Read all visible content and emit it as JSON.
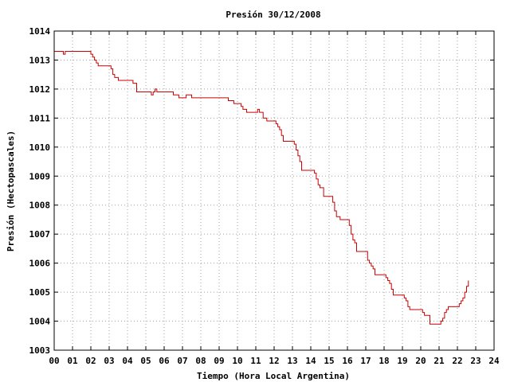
{
  "chart_data": {
    "type": "line",
    "title": "Presión 30/12/2008",
    "xlabel": "Tiempo (Hora Local Argentina)",
    "ylabel": "Presión (Hectopascales)",
    "xlim": [
      0,
      24
    ],
    "ylim": [
      1003,
      1014
    ],
    "x_ticks": [
      "00",
      "01",
      "02",
      "03",
      "04",
      "05",
      "06",
      "07",
      "08",
      "09",
      "10",
      "11",
      "12",
      "13",
      "14",
      "15",
      "16",
      "17",
      "18",
      "19",
      "20",
      "21",
      "22",
      "23",
      "24"
    ],
    "y_ticks": [
      "1003",
      "1004",
      "1005",
      "1006",
      "1007",
      "1008",
      "1009",
      "1010",
      "1011",
      "1012",
      "1013",
      "1014"
    ],
    "grid": true,
    "legend": "none",
    "line_color": "#cc0000",
    "series": [
      {
        "x": [
          0.0,
          0.4,
          0.5,
          0.6,
          1.3,
          2.0,
          2.1,
          2.2,
          2.3,
          2.4,
          2.5,
          3.0,
          3.1,
          3.2,
          3.3,
          3.5,
          4.0,
          4.3,
          4.5,
          5.0,
          5.3,
          5.4,
          5.5,
          5.6,
          6.0,
          6.5,
          6.8,
          7.0,
          7.2,
          7.4,
          7.5,
          8.0,
          8.5,
          9.0,
          9.5,
          9.8,
          10.0,
          10.2,
          10.3,
          10.5,
          10.7,
          11.0,
          11.1,
          11.2,
          11.4,
          11.6,
          11.8,
          12.0,
          12.1,
          12.2,
          12.3,
          12.4,
          12.5,
          12.6,
          12.7,
          13.0,
          13.1,
          13.2,
          13.3,
          13.4,
          13.5,
          14.0,
          14.1,
          14.2,
          14.3,
          14.4,
          14.5,
          14.7,
          15.0,
          15.1,
          15.2,
          15.3,
          15.4,
          15.6,
          16.0,
          16.1,
          16.2,
          16.3,
          16.4,
          16.5,
          16.6,
          17.0,
          17.1,
          17.2,
          17.3,
          17.4,
          17.5,
          17.6,
          18.0,
          18.1,
          18.2,
          18.3,
          18.4,
          18.5,
          18.6,
          18.7,
          19.0,
          19.1,
          19.2,
          19.3,
          19.4,
          19.5,
          19.6,
          20.0,
          20.1,
          20.2,
          20.3,
          20.4,
          20.5,
          20.6,
          21.0,
          21.1,
          21.2,
          21.3,
          21.4,
          21.5,
          22.0,
          22.1,
          22.2,
          22.3,
          22.4,
          22.5,
          22.6
        ],
        "values": [
          1013.3,
          1013.3,
          1013.2,
          1013.3,
          1013.3,
          1013.2,
          1013.1,
          1013.0,
          1012.9,
          1012.8,
          1012.8,
          1012.8,
          1012.7,
          1012.5,
          1012.4,
          1012.3,
          1012.3,
          1012.2,
          1011.9,
          1011.9,
          1011.8,
          1011.9,
          1012.0,
          1011.9,
          1011.9,
          1011.8,
          1011.7,
          1011.7,
          1011.8,
          1011.8,
          1011.7,
          1011.7,
          1011.7,
          1011.7,
          1011.6,
          1011.5,
          1011.5,
          1011.4,
          1011.3,
          1011.2,
          1011.2,
          1011.2,
          1011.3,
          1011.2,
          1011.0,
          1010.9,
          1010.9,
          1010.9,
          1010.8,
          1010.7,
          1010.6,
          1010.4,
          1010.2,
          1010.2,
          1010.2,
          1010.2,
          1010.1,
          1009.9,
          1009.7,
          1009.5,
          1009.2,
          1009.2,
          1009.2,
          1009.1,
          1008.9,
          1008.7,
          1008.6,
          1008.3,
          1008.3,
          1008.3,
          1008.1,
          1007.8,
          1007.6,
          1007.5,
          1007.5,
          1007.3,
          1007.0,
          1006.8,
          1006.7,
          1006.4,
          1006.4,
          1006.4,
          1006.1,
          1006.0,
          1005.9,
          1005.8,
          1005.6,
          1005.6,
          1005.6,
          1005.5,
          1005.4,
          1005.3,
          1005.1,
          1004.9,
          1004.9,
          1004.9,
          1004.9,
          1004.8,
          1004.7,
          1004.5,
          1004.4,
          1004.4,
          1004.4,
          1004.4,
          1004.3,
          1004.2,
          1004.2,
          1004.2,
          1003.9,
          1003.9,
          1003.9,
          1004.0,
          1004.1,
          1004.3,
          1004.4,
          1004.5,
          1004.5,
          1004.6,
          1004.7,
          1004.8,
          1005.0,
          1005.2,
          1005.4
        ]
      }
    ]
  }
}
